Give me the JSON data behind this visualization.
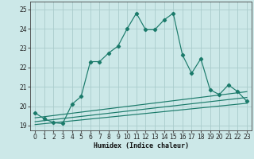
{
  "xlabel": "Humidex (Indice chaleur)",
  "xlim": [
    -0.5,
    23.5
  ],
  "ylim": [
    18.75,
    25.4
  ],
  "yticks": [
    19,
    20,
    21,
    22,
    23,
    24,
    25
  ],
  "xticks": [
    0,
    1,
    2,
    3,
    4,
    5,
    6,
    7,
    8,
    9,
    10,
    11,
    12,
    13,
    14,
    15,
    16,
    17,
    18,
    19,
    20,
    21,
    22,
    23
  ],
  "bg_color": "#cce8e8",
  "grid_color": "#aacccc",
  "line_color": "#1a7a6a",
  "main_x": [
    0,
    1,
    2,
    3,
    4,
    5,
    6,
    7,
    8,
    9,
    10,
    11,
    12,
    13,
    14,
    15,
    16,
    17,
    18,
    19,
    20,
    21,
    22,
    23
  ],
  "main_y": [
    19.65,
    19.35,
    19.15,
    19.1,
    20.1,
    20.5,
    22.3,
    22.3,
    22.75,
    23.1,
    24.0,
    24.8,
    23.95,
    23.95,
    24.45,
    24.8,
    22.65,
    21.7,
    22.45,
    20.85,
    20.6,
    21.1,
    20.75,
    20.25
  ],
  "line1_x": [
    0,
    23
  ],
  "line1_y": [
    19.05,
    20.15
  ],
  "line2_x": [
    0,
    23
  ],
  "line2_y": [
    19.2,
    20.45
  ],
  "line3_x": [
    0,
    23
  ],
  "line3_y": [
    19.4,
    20.75
  ]
}
